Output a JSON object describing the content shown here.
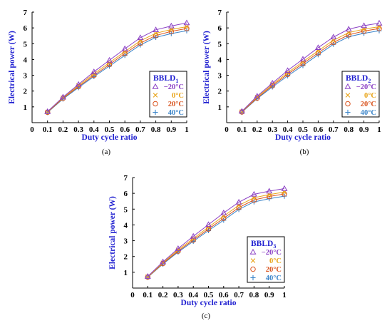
{
  "colors": {
    "axis_label": "#1f1fd0",
    "m20": "#8a3fc4",
    "p0": "#e8a317",
    "p20": "#d9531e",
    "p40": "#3a84c9",
    "legend_title": "#1f1fd0"
  },
  "chart_data": [
    {
      "type": "line",
      "panel_label": "(a)",
      "xlabel": "Duty cycle ratio",
      "ylabel": "Electrical power (W)",
      "xlim": [
        0,
        1
      ],
      "ylim": [
        0,
        7
      ],
      "xticks": [
        "0",
        "0.1",
        "0.2",
        "0.3",
        "0.4",
        "0.5",
        "0.6",
        "0.7",
        "0.8",
        "0.9",
        "1"
      ],
      "yticks": [
        "1",
        "2",
        "3",
        "4",
        "5",
        "6",
        "7"
      ],
      "grid": false,
      "legend_placement": "right",
      "legend_title": "BBLD",
      "legend_title_sub": "1",
      "x": [
        0.1,
        0.2,
        0.3,
        0.4,
        0.5,
        0.6,
        0.7,
        0.8,
        0.9,
        1.0
      ],
      "series": [
        {
          "name": "−20°C",
          "color": "m20",
          "marker": "triangle",
          "values": [
            0.7,
            1.62,
            2.42,
            3.22,
            3.95,
            4.68,
            5.38,
            5.88,
            6.12,
            6.32
          ]
        },
        {
          "name": "0°C",
          "color": "p0",
          "marker": "x",
          "values": [
            0.68,
            1.58,
            2.35,
            3.1,
            3.8,
            4.5,
            5.18,
            5.66,
            5.9,
            6.08
          ]
        },
        {
          "name": "20°C",
          "color": "p20",
          "marker": "circle",
          "values": [
            0.66,
            1.54,
            2.28,
            3.0,
            3.68,
            4.38,
            5.04,
            5.52,
            5.78,
            5.96
          ]
        },
        {
          "name": "40°C",
          "color": "p40",
          "marker": "plus",
          "values": [
            0.64,
            1.5,
            2.22,
            2.92,
            3.58,
            4.26,
            4.92,
            5.4,
            5.64,
            5.82
          ]
        }
      ]
    },
    {
      "type": "line",
      "panel_label": "(b)",
      "xlabel": "Duty cycle ratio",
      "ylabel": "Electrical power (W)",
      "xlim": [
        0,
        1
      ],
      "ylim": [
        0,
        7
      ],
      "xticks": [
        "0",
        "0.1",
        "0.2",
        "0.3",
        "0.4",
        "0.5",
        "0.6",
        "0.7",
        "0.8",
        "0.9",
        "1"
      ],
      "yticks": [
        "1",
        "2",
        "3",
        "4",
        "5",
        "6",
        "7"
      ],
      "grid": false,
      "legend_placement": "right",
      "legend_title": "BBLD",
      "legend_title_sub": "2",
      "x": [
        0.1,
        0.2,
        0.3,
        0.4,
        0.5,
        0.6,
        0.7,
        0.8,
        0.9,
        1.0
      ],
      "series": [
        {
          "name": "−20°C",
          "color": "m20",
          "marker": "triangle",
          "values": [
            0.72,
            1.68,
            2.5,
            3.3,
            4.02,
            4.75,
            5.42,
            5.92,
            6.14,
            6.3
          ]
        },
        {
          "name": "0°C",
          "color": "p0",
          "marker": "x",
          "values": [
            0.7,
            1.62,
            2.42,
            3.16,
            3.86,
            4.55,
            5.22,
            5.7,
            5.92,
            6.08
          ]
        },
        {
          "name": "20°C",
          "color": "p20",
          "marker": "circle",
          "values": [
            0.68,
            1.56,
            2.34,
            3.06,
            3.74,
            4.42,
            5.08,
            5.56,
            5.8,
            5.96
          ]
        },
        {
          "name": "40°C",
          "color": "p40",
          "marker": "plus",
          "values": [
            0.66,
            1.52,
            2.26,
            2.96,
            3.62,
            4.3,
            4.96,
            5.44,
            5.66,
            5.82
          ]
        }
      ]
    },
    {
      "type": "line",
      "panel_label": "(c)",
      "xlabel": "Duty cycle ratio",
      "ylabel": "Electrical power (W)",
      "xlim": [
        0,
        1
      ],
      "ylim": [
        0,
        7
      ],
      "xticks": [
        "0",
        "0.1",
        "0.2",
        "0.3",
        "0.4",
        "0.5",
        "0.6",
        "0.7",
        "0.8",
        "0.9",
        "1"
      ],
      "yticks": [
        "1",
        "2",
        "3",
        "4",
        "5",
        "6",
        "7"
      ],
      "grid": false,
      "legend_placement": "right",
      "legend_title": "BBLD",
      "legend_title_sub": "3",
      "x": [
        0.1,
        0.2,
        0.3,
        0.4,
        0.5,
        0.6,
        0.7,
        0.8,
        0.9,
        1.0
      ],
      "series": [
        {
          "name": "−20°C",
          "color": "m20",
          "marker": "triangle",
          "values": [
            0.74,
            1.66,
            2.5,
            3.28,
            4.02,
            4.76,
            5.44,
            5.94,
            6.14,
            6.3
          ]
        },
        {
          "name": "0°C",
          "color": "p0",
          "marker": "x",
          "values": [
            0.72,
            1.6,
            2.42,
            3.14,
            3.86,
            4.56,
            5.24,
            5.72,
            5.92,
            6.08
          ]
        },
        {
          "name": "20°C",
          "color": "p20",
          "marker": "circle",
          "values": [
            0.7,
            1.56,
            2.34,
            3.04,
            3.74,
            4.42,
            5.1,
            5.58,
            5.8,
            5.96
          ]
        },
        {
          "name": "40°C",
          "color": "p40",
          "marker": "plus",
          "values": [
            0.68,
            1.52,
            2.28,
            2.96,
            3.64,
            4.3,
            4.98,
            5.46,
            5.66,
            5.82
          ]
        }
      ]
    }
  ]
}
